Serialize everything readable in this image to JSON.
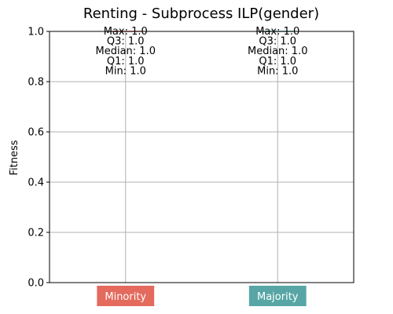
{
  "chart_data": {
    "type": "box",
    "title": "Renting - Subprocess ILP(gender)",
    "xlabel": "",
    "ylabel": "Fitness",
    "ylim": [
      0.0,
      1.0
    ],
    "yticks": [
      0.0,
      0.2,
      0.4,
      0.6,
      0.8,
      1.0
    ],
    "ytick_labels": [
      "0.0",
      "0.2",
      "0.4",
      "0.6",
      "0.8",
      "1.0"
    ],
    "grid": true,
    "categories": [
      "Minority",
      "Majority"
    ],
    "category_colors": [
      "#e36a5d",
      "#57a6a5"
    ],
    "stats": [
      {
        "max": 1.0,
        "q3": 1.0,
        "median": 1.0,
        "q1": 1.0,
        "min": 1.0
      },
      {
        "max": 1.0,
        "q3": 1.0,
        "median": 1.0,
        "q1": 1.0,
        "min": 1.0
      }
    ],
    "annotations": [
      [
        "Max: 1.0",
        "Q3: 1.0",
        "Median: 1.0",
        "Q1: 1.0",
        "Min: 1.0"
      ],
      [
        "Max: 1.0",
        "Q3: 1.0",
        "Median: 1.0",
        "Q1: 1.0",
        "Min: 1.0"
      ]
    ]
  }
}
